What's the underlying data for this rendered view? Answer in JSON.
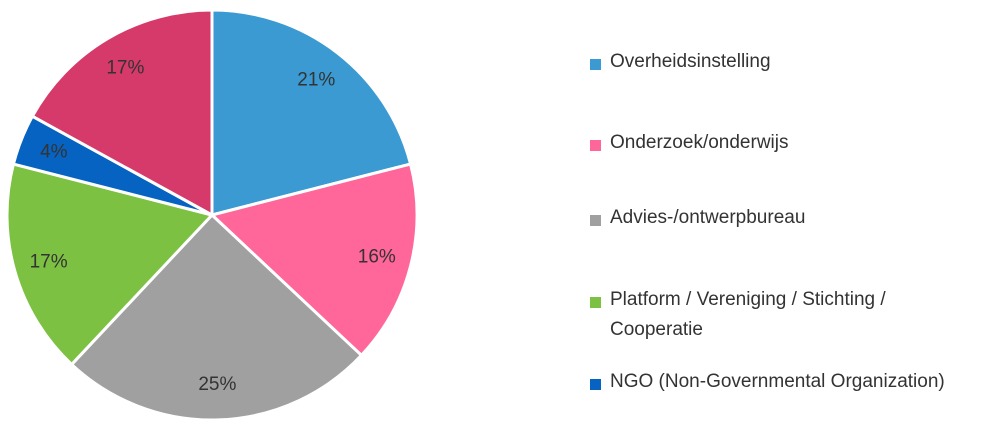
{
  "chart_data": {
    "type": "pie",
    "categories": [
      "Overheidsinstelling",
      "Onderzoek/onderwijs",
      "Advies-/ontwerpbureau",
      "Platform / Vereniging / Stichting / Cooperatie",
      "NGO (Non-Governmental Organization)",
      null
    ],
    "values": [
      21,
      16,
      25,
      17,
      4,
      17
    ],
    "value_labels": [
      "21%",
      "16%",
      "25%",
      "17%",
      "4%",
      "17%"
    ],
    "colors": [
      "#3a9ad1",
      "#ff6699",
      "#a0a0a0",
      "#7cc142",
      "#0663c2",
      "#d63a6a"
    ],
    "legend": "right"
  }
}
